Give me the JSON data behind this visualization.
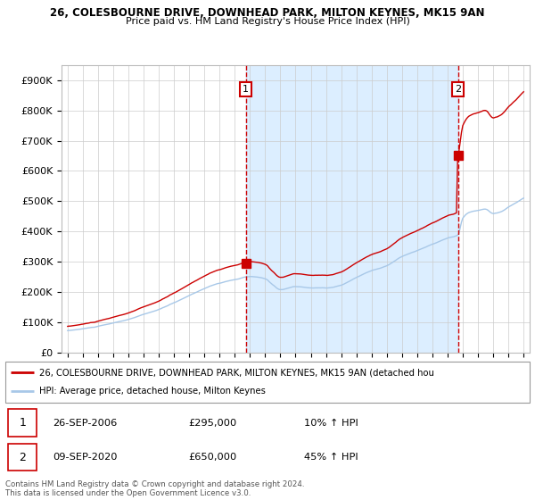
{
  "title_line1": "26, COLESBOURNE DRIVE, DOWNHEAD PARK, MILTON KEYNES, MK15 9AN",
  "title_line2": "Price paid vs. HM Land Registry's House Price Index (HPI)",
  "ylim": [
    0,
    950000
  ],
  "yticks": [
    0,
    100000,
    200000,
    300000,
    400000,
    500000,
    600000,
    700000,
    800000,
    900000
  ],
  "ytick_labels": [
    "£0",
    "£100K",
    "£200K",
    "£300K",
    "£400K",
    "£500K",
    "£600K",
    "£700K",
    "£800K",
    "£900K"
  ],
  "sale1_date": "26-SEP-2006",
  "sale1_price": 295000,
  "sale1_hpi_text": "10% ↑ HPI",
  "sale1_x": 2006.73,
  "sale2_date": "09-SEP-2020",
  "sale2_price": 650000,
  "sale2_hpi_text": "45% ↑ HPI",
  "sale2_x": 2020.69,
  "hpi_color": "#a8c8e8",
  "price_color": "#cc0000",
  "vline_color": "#cc0000",
  "shading_color": "#dceeff",
  "legend_label1": "26, COLESBOURNE DRIVE, DOWNHEAD PARK, MILTON KEYNES, MK15 9AN (detached hou",
  "legend_label2": "HPI: Average price, detached house, Milton Keynes",
  "footer1": "Contains HM Land Registry data © Crown copyright and database right 2024.",
  "footer2": "This data is licensed under the Open Government Licence v3.0.",
  "grid_color": "#cccccc",
  "xlim_left": 1994.6,
  "xlim_right": 2025.4,
  "annotation_box_color": "#cc0000",
  "sale1_label": "1",
  "sale2_label": "2"
}
